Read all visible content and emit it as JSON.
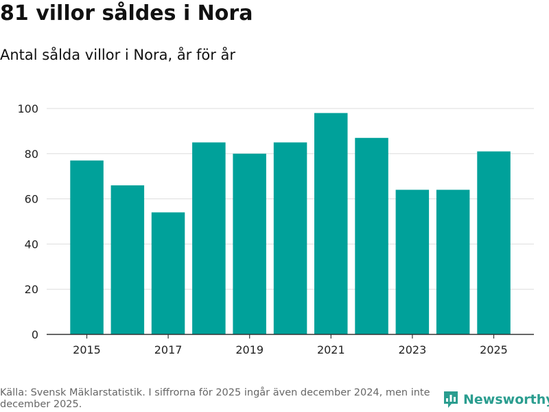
{
  "header": {
    "title": "81 villor såldes i Nora",
    "subtitle": "Antal sålda villor i Nora, år för år"
  },
  "footer": {
    "source": "Källa: Svensk Mäklarstatistik. I siffrorna för 2025 ingår även december 2024, men inte december 2025.",
    "brand": "Newsworthy"
  },
  "colors": {
    "bar": "#00a19a",
    "brand": "#2a9d8f",
    "grid": "#dddddd",
    "axis": "#333333"
  },
  "chart_data": {
    "type": "bar",
    "title": "81 villor såldes i Nora",
    "subtitle": "Antal sålda villor i Nora, år för år",
    "xlabel": "",
    "ylabel": "",
    "categories": [
      "2015",
      "2016",
      "2017",
      "2018",
      "2019",
      "2020",
      "2021",
      "2022",
      "2023",
      "2024",
      "2025"
    ],
    "values": [
      77,
      66,
      54,
      85,
      80,
      85,
      98,
      87,
      64,
      64,
      81
    ],
    "x_tick_labels": [
      "2015",
      "2017",
      "2019",
      "2021",
      "2023",
      "2025"
    ],
    "y_ticks": [
      0,
      20,
      40,
      60,
      80,
      100
    ],
    "ylim": [
      0,
      100
    ],
    "grid": true
  }
}
